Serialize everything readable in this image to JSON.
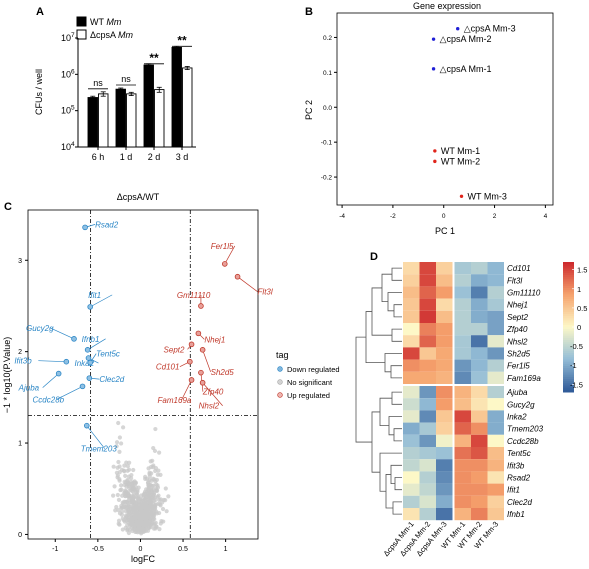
{
  "colors": {
    "wt_bar": "#000000",
    "ko_bar": "#ffffff",
    "pca_ko": "#1f1fd6",
    "pca_wt": "#e0241b",
    "down": "#2a86c6",
    "no_sig": "#c8c8c8",
    "up": "#c0392b"
  },
  "panels": [
    {
      "id": "A",
      "label": "A"
    },
    {
      "id": "B",
      "label": "B"
    },
    {
      "id": "C",
      "label": "C"
    },
    {
      "id": "D",
      "label": "D"
    }
  ],
  "chart_data": [
    {
      "panel": "A",
      "type": "bar",
      "ylabel": "CFUs / well",
      "yscale": "log",
      "ylim": [
        10000,
        10000000
      ],
      "yticks": [
        {
          "value": 10000,
          "base": "10",
          "exp": "4"
        },
        {
          "value": 100000,
          "base": "10",
          "exp": "5"
        },
        {
          "value": 1000000,
          "base": "10",
          "exp": "6"
        },
        {
          "value": 10000000,
          "base": "10",
          "exp": "7"
        }
      ],
      "categories": [
        "6 h",
        "1 d",
        "2 d",
        "3 d"
      ],
      "series": [
        {
          "name_prefix": "WT ",
          "name_italic": "Mm",
          "values": [
            230000,
            390000,
            1800000,
            5500000
          ],
          "errors": [
            20000,
            30000,
            150000,
            400000
          ]
        },
        {
          "name_prefix": "ΔcpsA ",
          "name_italic": "Mm",
          "values": [
            290000,
            290000,
            380000,
            1500000
          ],
          "errors": [
            40000,
            30000,
            60000,
            150000
          ]
        }
      ],
      "significance": [
        "ns",
        "ns",
        "**",
        "**"
      ],
      "grid": false,
      "legend": "top-left"
    },
    {
      "panel": "B",
      "type": "scatter",
      "title": "Gene expression",
      "xlabel": "PC 1",
      "ylabel": "PC 2",
      "xlim": [
        -4.2,
        4.3
      ],
      "ylim": [
        -0.28,
        0.27
      ],
      "xticks": [
        -4,
        -2,
        0,
        2,
        4
      ],
      "yticks": [
        -0.2,
        -0.1,
        0.0,
        0.1,
        0.2
      ],
      "points": [
        {
          "x": 0.55,
          "y": 0.225,
          "group": "ko",
          "label": "△cpsA Mm-3"
        },
        {
          "x": -0.4,
          "y": 0.195,
          "group": "ko",
          "label": "△cpsA Mm-2"
        },
        {
          "x": -0.4,
          "y": 0.11,
          "group": "ko",
          "label": "△cpsA Mm-1"
        },
        {
          "x": -0.35,
          "y": -0.125,
          "group": "wt",
          "label": "WT Mm-1"
        },
        {
          "x": -0.35,
          "y": -0.155,
          "group": "wt",
          "label": "WT Mm-2"
        },
        {
          "x": 0.7,
          "y": -0.255,
          "group": "wt",
          "label": "WT Mm-3"
        }
      ],
      "grid": false
    },
    {
      "panel": "C",
      "type": "scatter",
      "title": "ΔcpsA/WT",
      "xlabel": "logFC",
      "ylabel": "−1 * log10(P.Value)",
      "xlim": [
        -1.32,
        1.38
      ],
      "ylim": [
        -0.05,
        3.55
      ],
      "xticks": [
        -1,
        -0.5,
        0,
        0.5,
        1
      ],
      "yticks": [
        0,
        1,
        2,
        3
      ],
      "thresholds": {
        "logfc": [
          -0.585,
          0.585
        ],
        "neglog10p": 1.3
      },
      "legend": {
        "title": "tag",
        "entries": [
          "Down regulated",
          "No significant",
          "Up regulated"
        ],
        "placement": "right"
      },
      "labeled_genes": [
        {
          "gene": "Rsad2",
          "x": -0.65,
          "y": 3.36,
          "tag": "down"
        },
        {
          "gene": "Ifit1",
          "x": -0.59,
          "y": 2.49,
          "tag": "down"
        },
        {
          "gene": "Gucy2g",
          "x": -0.78,
          "y": 2.14,
          "tag": "down"
        },
        {
          "gene": "Ifnb1",
          "x": -0.62,
          "y": 2.02,
          "tag": "down"
        },
        {
          "gene": "Ifit3b",
          "x": -0.87,
          "y": 1.89,
          "tag": "down"
        },
        {
          "gene": "Inka2",
          "x": -0.61,
          "y": 1.93,
          "tag": "down"
        },
        {
          "gene": "Tent5c",
          "x": -0.59,
          "y": 1.88,
          "tag": "down"
        },
        {
          "gene": "Ajuba",
          "x": -0.96,
          "y": 1.76,
          "tag": "down"
        },
        {
          "gene": "Clec2d",
          "x": -0.6,
          "y": 1.71,
          "tag": "down"
        },
        {
          "gene": "Ccdc28b",
          "x": -0.68,
          "y": 1.62,
          "tag": "down"
        },
        {
          "gene": "Tmem203",
          "x": -0.63,
          "y": 1.19,
          "tag": "down"
        },
        {
          "gene": "Fer1l5",
          "x": 0.99,
          "y": 2.96,
          "tag": "up"
        },
        {
          "gene": "Flt3l",
          "x": 1.14,
          "y": 2.82,
          "tag": "up"
        },
        {
          "gene": "Gm11110",
          "x": 0.71,
          "y": 2.5,
          "tag": "up"
        },
        {
          "gene": "Nhej1",
          "x": 0.68,
          "y": 2.2,
          "tag": "up"
        },
        {
          "gene": "Sept2",
          "x": 0.6,
          "y": 2.08,
          "tag": "up"
        },
        {
          "gene": "Sh2d5",
          "x": 0.73,
          "y": 2.02,
          "tag": "up"
        },
        {
          "gene": "Cd101",
          "x": 0.58,
          "y": 1.89,
          "tag": "up"
        },
        {
          "gene": "Zfp40",
          "x": 0.71,
          "y": 1.77,
          "tag": "up"
        },
        {
          "gene": "Fam169a",
          "x": 0.6,
          "y": 1.69,
          "tag": "up"
        },
        {
          "gene": "Nhsl2",
          "x": 0.73,
          "y": 1.66,
          "tag": "up"
        }
      ],
      "grid": false
    },
    {
      "panel": "D",
      "type": "heatmap",
      "columns": [
        "ΔcpsA Mm-1",
        "ΔcpsA Mm-2",
        "ΔcpsA Mm-3",
        "WT Mm-1",
        "WT Mm-2",
        "WT Mm-3"
      ],
      "rows": [
        "Cd101",
        "Flt3l",
        "Gm11110",
        "Nhej1",
        "Sept2",
        "Zfp40",
        "Nhsl2",
        "Sh2d5",
        "Fer1l5",
        "Fam169a",
        "Ajuba",
        "Gucy2g",
        "Inka2",
        "Tmem203",
        "Ccdc28b",
        "Tent5c",
        "Ifit3b",
        "Rsad2",
        "Ifit1",
        "Clec2d",
        "Ifnb1"
      ],
      "values": [
        [
          0.3,
          1.5,
          0.4,
          -0.7,
          -0.6,
          -0.9
        ],
        [
          0.4,
          1.5,
          0.6,
          -0.6,
          -1.0,
          -0.9
        ],
        [
          0.6,
          1.3,
          0.9,
          -0.8,
          -1.4,
          -0.6
        ],
        [
          0.5,
          1.5,
          0.3,
          -0.6,
          -1.0,
          -0.7
        ],
        [
          0.5,
          1.6,
          0.6,
          -0.6,
          -1.0,
          -1.1
        ],
        [
          0.0,
          1.1,
          0.9,
          -0.6,
          -0.6,
          -1.1
        ],
        [
          0.3,
          1.3,
          0.9,
          -0.7,
          -1.5,
          -0.2
        ],
        [
          1.5,
          0.5,
          0.8,
          -0.7,
          -0.9,
          -1.2
        ],
        [
          1.0,
          0.9,
          0.8,
          -1.2,
          -0.9,
          -0.6
        ],
        [
          0.8,
          0.8,
          0.7,
          -1.3,
          -0.8,
          -0.2
        ],
        [
          -0.2,
          -1.2,
          1.0,
          0.7,
          0.3,
          -0.6
        ],
        [
          -0.4,
          -0.9,
          0.9,
          0.6,
          0.2,
          0.0
        ],
        [
          -0.2,
          -1.3,
          0.5,
          1.5,
          0.5,
          -1.0
        ],
        [
          -1.0,
          -0.7,
          0.4,
          1.3,
          1.0,
          -1.0
        ],
        [
          -0.8,
          -1.2,
          -0.1,
          0.7,
          1.5,
          0.0
        ],
        [
          -0.6,
          -0.7,
          -0.8,
          1.2,
          1.4,
          0.6
        ],
        [
          -0.5,
          -0.3,
          -1.4,
          1.0,
          1.0,
          0.7
        ],
        [
          0.0,
          -0.6,
          -1.3,
          1.0,
          0.9,
          0.2
        ],
        [
          -0.2,
          -0.5,
          -1.2,
          1.0,
          1.0,
          0.9
        ],
        [
          -0.6,
          -0.3,
          -1.0,
          1.0,
          0.9,
          0.4
        ],
        [
          0.2,
          -0.6,
          -1.5,
          0.7,
          1.1,
          0.5
        ]
      ],
      "colorbar": {
        "ticks": [
          1.5,
          1,
          0.5,
          0,
          -0.5,
          -1,
          -1.5
        ],
        "labels": [
          "1.5",
          "1",
          "0.5",
          "0",
          "-0.5",
          "-1",
          "-1.5"
        ],
        "range": [
          -1.7,
          1.7
        ]
      }
    }
  ]
}
